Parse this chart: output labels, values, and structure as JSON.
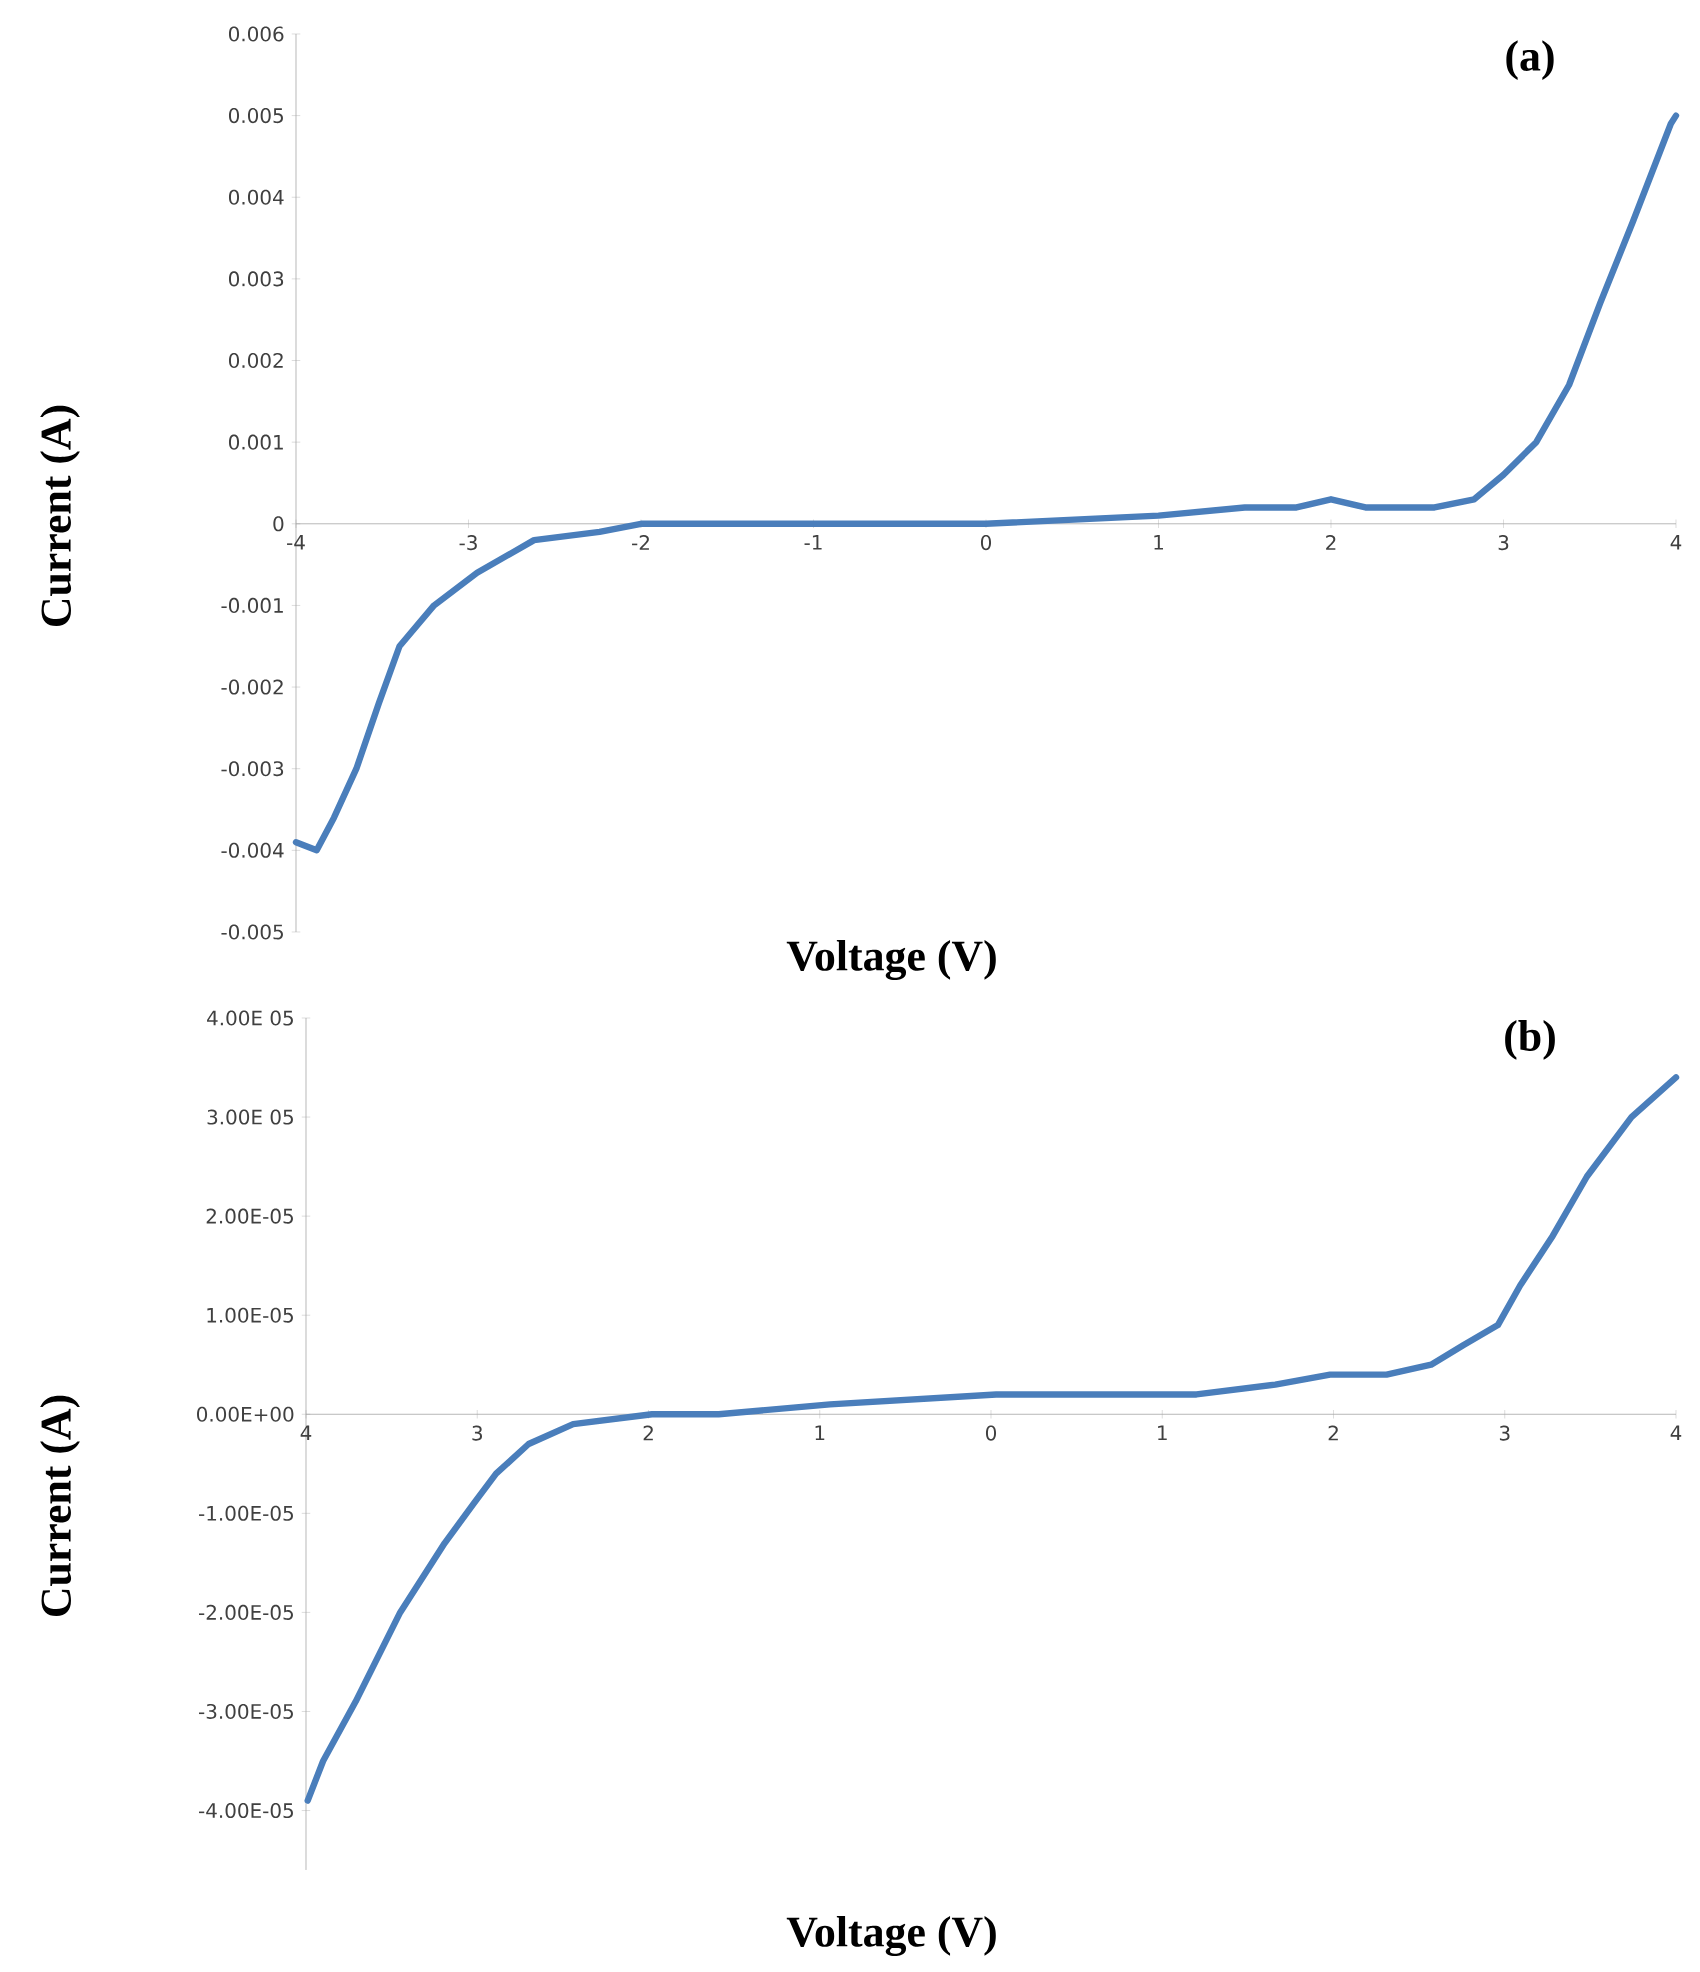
{
  "chart_data": [
    {
      "type": "line",
      "title": "(a)",
      "xlabel": "Voltage (V)",
      "ylabel": "Current (A)",
      "marker": "none",
      "line_style": "solid",
      "xlim": [
        -4,
        4
      ],
      "ylim": [
        -0.005,
        0.006
      ],
      "xticks": [
        -4,
        -3,
        -2,
        -1,
        0,
        1,
        2,
        3,
        4
      ],
      "yticks": [
        -0.005,
        -0.004,
        -0.003,
        -0.002,
        -0.001,
        0,
        0.001,
        0.002,
        0.003,
        0.004,
        0.005,
        0.006
      ],
      "series": [
        {
          "color": "#4a7ebb",
          "x": [
            -4,
            -3.88,
            -3.78,
            -3.65,
            -3.52,
            -3.4,
            -3.2,
            -2.95,
            -2.62,
            -2.24,
            -2,
            -1.5,
            -1,
            0,
            1,
            1.5,
            1.8,
            2,
            2.2,
            2.6,
            2.83,
            3,
            3.19,
            3.38,
            3.56,
            3.75,
            3.97,
            4
          ],
          "values": [
            -0.0039,
            -0.004,
            -0.0036,
            -0.003,
            -0.0022,
            -0.0015,
            -0.001,
            -0.0006,
            -0.0002,
            -0.0001,
            0,
            0,
            0,
            0,
            0.0001,
            0.0002,
            0.0002,
            0.0003,
            0.0002,
            0.0002,
            0.0003,
            0.0006,
            0.001,
            0.0017,
            0.0027,
            0.0037,
            0.0049,
            0.005
          ]
        }
      ]
    },
    {
      "type": "line",
      "title": "(b)",
      "xlabel": "Voltage (V)",
      "ylabel": "Current (A)",
      "marker": "none",
      "line_style": "solid",
      "xlim": [
        -4,
        4
      ],
      "ylim": [
        -4.6e-05,
        4e-05
      ],
      "xticks": [
        {
          "value": -4,
          "label": "4"
        },
        {
          "value": -3,
          "label": "3"
        },
        {
          "value": -2,
          "label": "2"
        },
        {
          "value": -1,
          "label": "1"
        },
        {
          "value": 0,
          "label": "0"
        },
        {
          "value": 1,
          "label": "1"
        },
        {
          "value": 2,
          "label": "2"
        },
        {
          "value": 3,
          "label": "3"
        },
        {
          "value": 4,
          "label": "4"
        }
      ],
      "yticks": [
        {
          "value": -4e-05,
          "label": "-4.00E-05"
        },
        {
          "value": -3e-05,
          "label": "-3.00E-05"
        },
        {
          "value": -2e-05,
          "label": "-2.00E-05"
        },
        {
          "value": -1e-05,
          "label": "-1.00E-05"
        },
        {
          "value": 0,
          "label": "0.00E+00"
        },
        {
          "value": 1e-05,
          "label": "1.00E-05"
        },
        {
          "value": 2e-05,
          "label": "2.00E-05"
        },
        {
          "value": 3e-05,
          "label": "3.00E 05"
        },
        {
          "value": 4e-05,
          "label": "4.00E 05"
        }
      ],
      "series": [
        {
          "color": "#4a7ebb",
          "x": [
            -3.99,
            -3.9,
            -3.71,
            -3.45,
            -3.19,
            -3.02,
            -2.89,
            -2.7,
            -2.44,
            -1.98,
            -1.59,
            -0.94,
            0.03,
            0.68,
            0.94,
            1.2,
            1.66,
            1.98,
            2.31,
            2.57,
            2.76,
            2.96,
            3.09,
            3.28,
            3.48,
            3.74,
            4
          ],
          "values": [
            -3.9e-05,
            -3.5e-05,
            -2.9e-05,
            -2e-05,
            -1.3e-05,
            -9e-06,
            -6e-06,
            -3e-06,
            -1e-06,
            0,
            0,
            1e-06,
            2e-06,
            2e-06,
            2e-06,
            2e-06,
            3e-06,
            4e-06,
            4e-06,
            5e-06,
            7e-06,
            9e-06,
            1.3e-05,
            1.8e-05,
            2.4e-05,
            3e-05,
            3.4e-05
          ]
        }
      ]
    }
  ]
}
